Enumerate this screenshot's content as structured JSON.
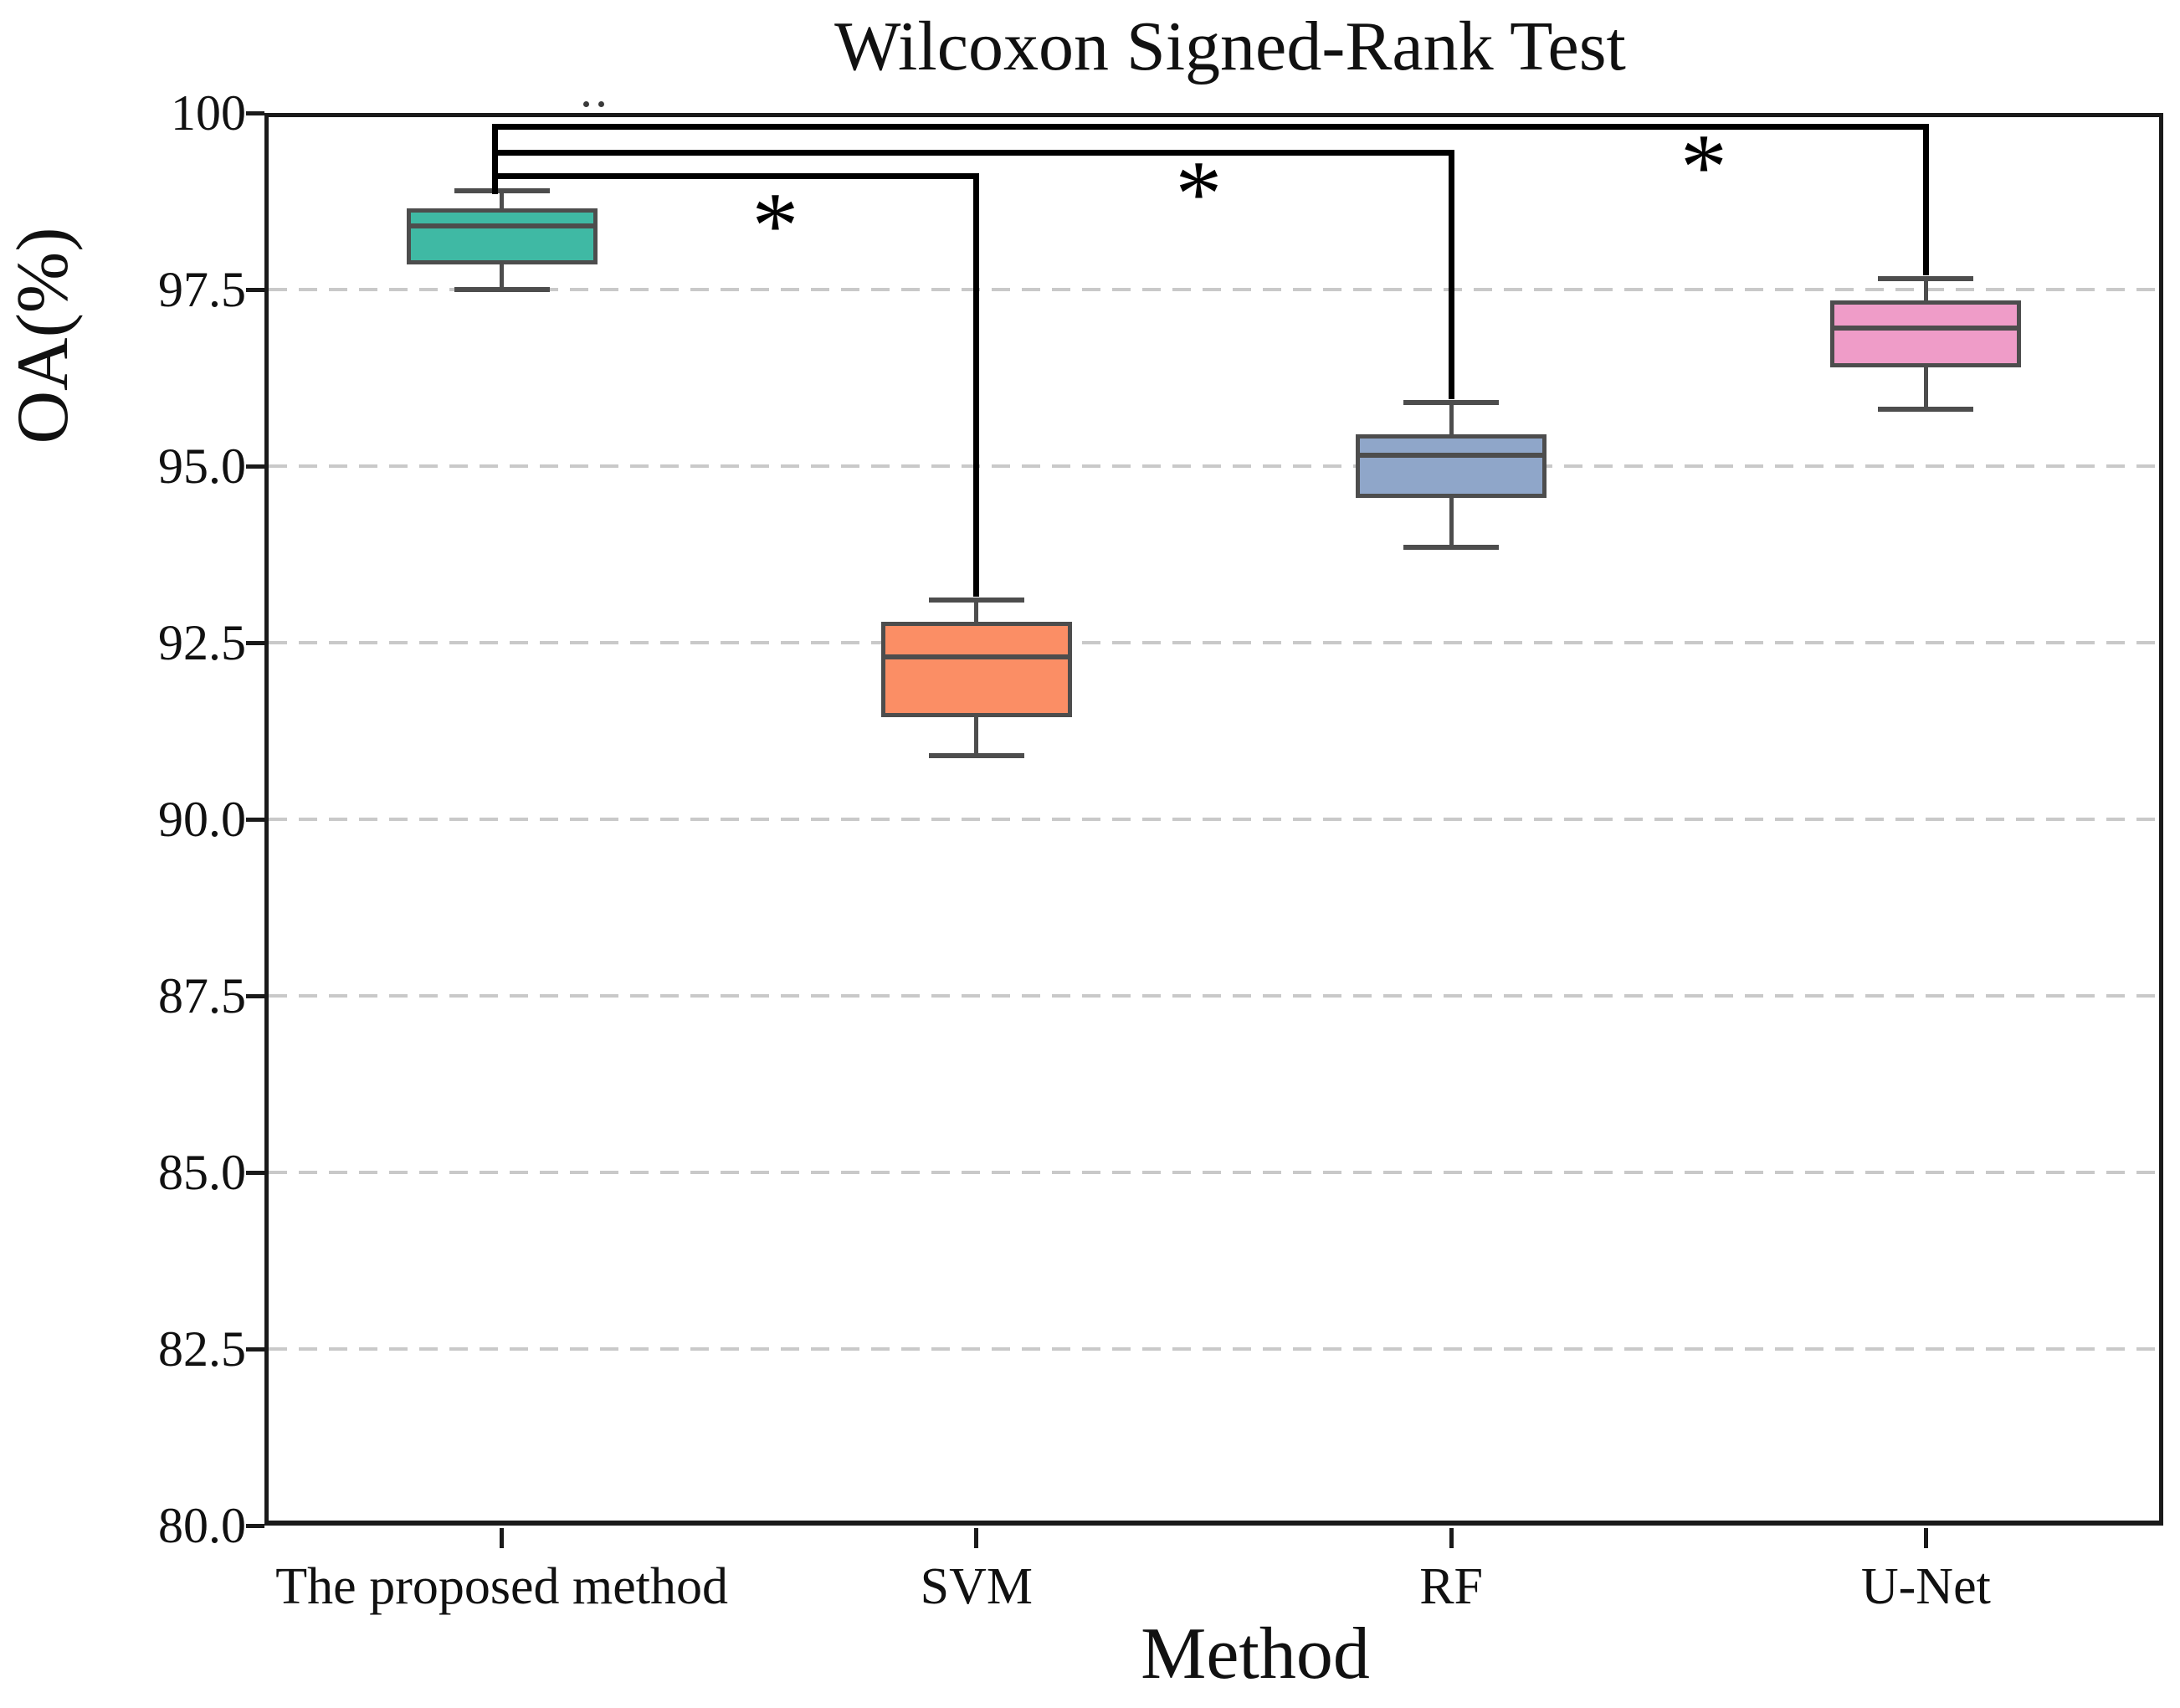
{
  "title": "Wilcoxon Signed-Rank Test",
  "x_axis_label": "Method",
  "y_axis_label": "OA(%)",
  "chart_data": {
    "type": "box",
    "title": "Wilcoxon Signed-Rank Test",
    "xlabel": "Method",
    "ylabel": "OA(%)",
    "categories": [
      "The proposed method",
      "SVM",
      "RF",
      "U-Net"
    ],
    "y_axis": {
      "min": 80.0,
      "max": 100.0,
      "tick_values": [
        100,
        97.5,
        95.0,
        92.5,
        90.0,
        87.5,
        85.0,
        82.5,
        80.0
      ],
      "tick_labels": [
        "100",
        "97.5",
        "95.0",
        "92.5",
        "90.0",
        "87.5",
        "85.0",
        "82.5",
        "80.0"
      ],
      "grid": "dashed"
    },
    "series": [
      {
        "name": "The proposed method",
        "color": "#3FB9A4",
        "whisker_low": 97.5,
        "q1": 97.85,
        "median": 98.4,
        "q3": 98.65,
        "whisker_high": 98.9
      },
      {
        "name": "SVM",
        "color": "#FB8E65",
        "whisker_low": 90.9,
        "q1": 91.45,
        "median": 92.3,
        "q3": 92.8,
        "whisker_high": 93.1
      },
      {
        "name": "RF",
        "color": "#8FA6C9",
        "whisker_low": 93.85,
        "q1": 94.55,
        "median": 95.15,
        "q3": 95.45,
        "whisker_high": 95.9
      },
      {
        "name": "U-Net",
        "color": "#EF9CC8",
        "whisker_low": 95.8,
        "q1": 96.4,
        "median": 96.95,
        "q3": 97.35,
        "whisker_high": 97.65
      }
    ],
    "box_edge_color": "#4d4d4d",
    "grid_color": "#c9c9c9",
    "significance": {
      "marker": "*",
      "source_stem_bottom_level": 98.85,
      "comparisons": [
        {
          "from_index": 0,
          "to_index": 3,
          "from": "The proposed method",
          "to": "U-Net",
          "line_level": 99.8,
          "drop_to": 97.7,
          "marker_x_frac": 0.758,
          "marker_level": 99.33
        },
        {
          "from_index": 0,
          "to_index": 2,
          "from": "The proposed method",
          "to": "RF",
          "line_level": 99.44,
          "drop_to": 95.95,
          "marker_x_frac": 0.492,
          "marker_level": 98.95
        },
        {
          "from_index": 0,
          "to_index": 1,
          "from": "The proposed method",
          "to": "SVM",
          "line_level": 99.11,
          "drop_to": 93.15,
          "marker_x_frac": 0.269,
          "marker_level": 98.5
        }
      ]
    },
    "render_artifacts": [
      {
        "x_frac": 0.168,
        "level": 100.16
      },
      {
        "x_frac": 0.176,
        "level": 100.16
      }
    ]
  }
}
